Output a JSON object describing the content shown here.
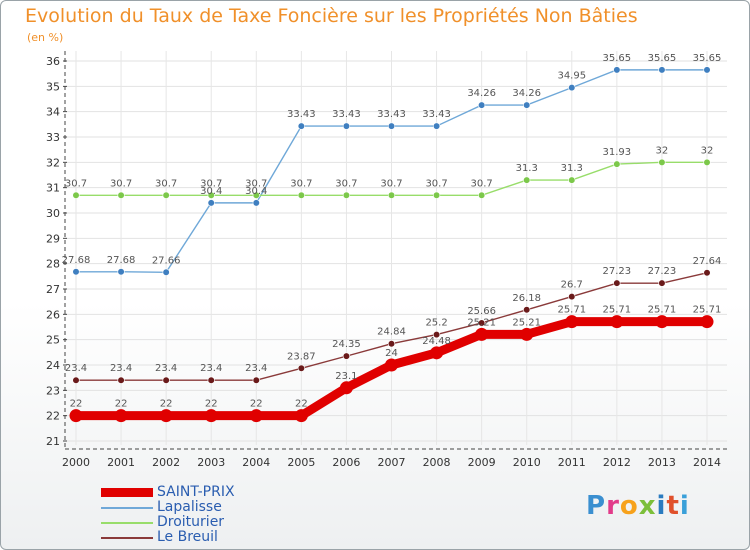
{
  "title": "Evolution du Taux de Taxe Foncière sur les Propriétés Non Bâties",
  "unit_label": "(en %)",
  "logo": {
    "text": "Proxiti",
    "colors": [
      "#3a8fd0",
      "#e23b8a",
      "#f7a21b",
      "#7cbf3a",
      "#2a7bc0",
      "#e0502b",
      "#3aa0d9"
    ]
  },
  "legend": [
    {
      "label": "SAINT-PRIX"
    },
    {
      "label": "Lapalisse"
    },
    {
      "label": "Droiturier"
    },
    {
      "label": "Le Breuil"
    }
  ],
  "chart_data": {
    "type": "line",
    "x": [
      "2000",
      "2001",
      "2002",
      "2003",
      "2004",
      "2005",
      "2006",
      "2007",
      "2008",
      "2009",
      "2010",
      "2011",
      "2012",
      "2013",
      "2014"
    ],
    "ylim": [
      21,
      36
    ],
    "y_ticks": [
      21,
      22,
      23,
      24,
      25,
      26,
      27,
      28,
      29,
      30,
      31,
      32,
      33,
      34,
      35,
      36
    ],
    "grid": true,
    "legend_position": "bottom-left",
    "series": [
      {
        "name": "SAINT-PRIX",
        "color": "#e00000",
        "emphasis": true,
        "values": [
          22,
          22,
          22,
          22,
          22,
          22,
          23.1,
          24,
          24.48,
          25.21,
          25.21,
          25.71,
          25.71,
          25.71,
          25.71
        ],
        "labels": [
          "22",
          "22",
          "22",
          "22",
          "22",
          "22",
          "23.1",
          "24",
          "24.48",
          "25.21",
          "25.21",
          "25.71",
          "25.71",
          "25.71",
          "25.71"
        ]
      },
      {
        "name": "Lapalisse",
        "color": "#6fa8d8",
        "marker": "#3f7fc0",
        "values": [
          27.68,
          27.68,
          27.66,
          30.4,
          30.4,
          33.43,
          33.43,
          33.43,
          33.43,
          34.26,
          34.26,
          34.95,
          35.65,
          35.65,
          35.65
        ],
        "labels": [
          "27.68",
          "27.68",
          "27.66",
          "30.4",
          "30.4",
          "33.43",
          "33.43",
          "33.43",
          "33.43",
          "34.26",
          "34.26",
          "34.95",
          "35.65",
          "35.65",
          "35.65"
        ]
      },
      {
        "name": "Droiturier",
        "color": "#98dd6a",
        "marker": "#7cc84a",
        "values": [
          30.7,
          30.7,
          30.7,
          30.7,
          30.7,
          30.7,
          30.7,
          30.7,
          30.7,
          30.7,
          31.3,
          31.3,
          31.93,
          32,
          32
        ],
        "labels": [
          "30.7",
          "30.7",
          "30.7",
          "30.7",
          "30.7",
          "30.7",
          "30.7",
          "30.7",
          "30.7",
          "30.7",
          "31.3",
          "31.3",
          "31.93",
          "32",
          "32"
        ]
      },
      {
        "name": "Le Breuil",
        "color": "#8a3a3a",
        "marker": "#6a1a1a",
        "values": [
          23.4,
          23.4,
          23.4,
          23.4,
          23.4,
          23.87,
          24.35,
          24.84,
          25.2,
          25.66,
          26.18,
          26.7,
          27.23,
          27.23,
          27.64
        ],
        "labels": [
          "23.4",
          "23.4",
          "23.4",
          "23.4",
          "23.4",
          "23.87",
          "24.35",
          "24.84",
          "25.2",
          "25.66",
          "26.18",
          "26.7",
          "27.23",
          "27.23",
          "27.64"
        ]
      }
    ]
  }
}
